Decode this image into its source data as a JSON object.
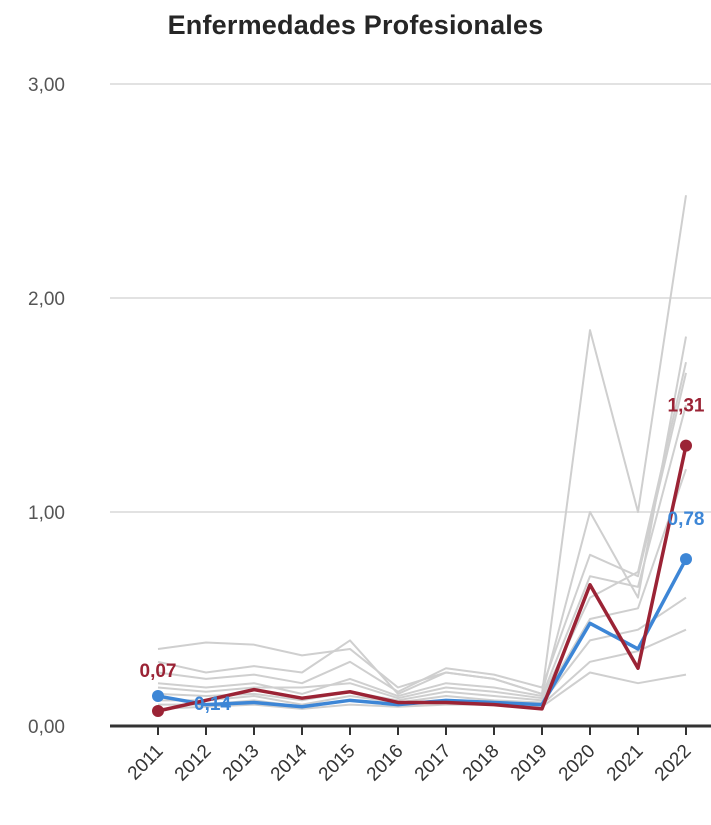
{
  "colors": {
    "highlight_red": "#9b2335",
    "highlight_blue": "#3d86d6",
    "background_lines": "#cfcfcf",
    "grid": "#d9d9d9",
    "axis": "#333333"
  },
  "chart_data": {
    "type": "line",
    "title": "Enfermedades Profesionales",
    "xlabel": "",
    "ylabel": "",
    "x": [
      "2011",
      "2012",
      "2013",
      "2014",
      "2015",
      "2016",
      "2017",
      "2018",
      "2019",
      "2020",
      "2021",
      "2022"
    ],
    "ylim": [
      0,
      3
    ],
    "yticks": [
      {
        "value": 0,
        "label": "0,00"
      },
      {
        "value": 1,
        "label": "1,00"
      },
      {
        "value": 2,
        "label": "2,00"
      },
      {
        "value": 3,
        "label": "3,00"
      }
    ],
    "grid": true,
    "legend": "none",
    "highlighted_series": [
      {
        "values": [
          0.07,
          0.12,
          0.17,
          0.13,
          0.16,
          0.11,
          0.11,
          0.1,
          0.08,
          0.66,
          0.27,
          1.31
        ],
        "color": "#9b2335",
        "labels": [
          {
            "index": 0,
            "text": "0,07",
            "position": "above"
          },
          {
            "index": 11,
            "text": "1,31",
            "position": "above"
          }
        ]
      },
      {
        "values": [
          0.14,
          0.1,
          0.11,
          0.09,
          0.12,
          0.1,
          0.12,
          0.11,
          0.1,
          0.48,
          0.36,
          0.78
        ],
        "color": "#3d86d6",
        "labels": [
          {
            "index": 0,
            "text": "0,14",
            "position": "right"
          },
          {
            "index": 11,
            "text": "0,78",
            "position": "above"
          }
        ]
      }
    ],
    "background_series": [
      [
        0.36,
        0.39,
        0.38,
        0.33,
        0.36,
        0.18,
        0.25,
        0.22,
        0.15,
        1.85,
        1.0,
        2.48
      ],
      [
        0.3,
        0.25,
        0.28,
        0.25,
        0.4,
        0.15,
        0.25,
        0.22,
        0.15,
        1.0,
        0.6,
        1.82
      ],
      [
        0.25,
        0.22,
        0.24,
        0.2,
        0.3,
        0.16,
        0.27,
        0.24,
        0.18,
        0.8,
        0.7,
        1.65
      ],
      [
        0.2,
        0.18,
        0.2,
        0.15,
        0.22,
        0.14,
        0.2,
        0.18,
        0.14,
        0.7,
        0.65,
        1.5
      ],
      [
        0.18,
        0.16,
        0.18,
        0.18,
        0.2,
        0.13,
        0.18,
        0.16,
        0.13,
        0.6,
        0.72,
        1.7
      ],
      [
        0.15,
        0.14,
        0.15,
        0.12,
        0.16,
        0.12,
        0.16,
        0.14,
        0.12,
        0.5,
        0.55,
        1.2
      ],
      [
        0.12,
        0.12,
        0.14,
        0.1,
        0.14,
        0.11,
        0.14,
        0.12,
        0.11,
        0.4,
        0.45,
        0.6
      ],
      [
        0.1,
        0.1,
        0.12,
        0.09,
        0.12,
        0.1,
        0.12,
        0.11,
        0.1,
        0.3,
        0.35,
        0.45
      ],
      [
        0.08,
        0.09,
        0.1,
        0.08,
        0.1,
        0.09,
        0.1,
        0.1,
        0.09,
        0.25,
        0.2,
        0.24
      ]
    ]
  }
}
